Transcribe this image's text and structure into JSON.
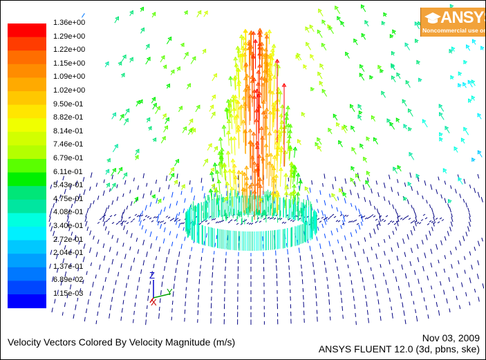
{
  "legend": {
    "labels": [
      "1.36e+00",
      "1.29e+00",
      "1.22e+00",
      "1.15e+00",
      "1.09e+00",
      "1.02e+00",
      "9.50e-01",
      "8.82e-01",
      "8.14e-01",
      "7.46e-01",
      "6.79e-01",
      "6.11e-01",
      "5.43e-01",
      "4.75e-01",
      "4.08e-01",
      "3.40e-01",
      "2.72e-01",
      "2.04e-01",
      "1.37e-01",
      "6.89e-02",
      "1.15e-03"
    ],
    "colors": [
      "#ff0000",
      "#ff3c00",
      "#ff6e00",
      "#ff8c00",
      "#ffaa00",
      "#ffc800",
      "#ffe600",
      "#f0ff00",
      "#d2ff00",
      "#b4ff00",
      "#5aff00",
      "#00f000",
      "#00e678",
      "#00e6a0",
      "#00ffe0",
      "#00f0ff",
      "#00c8ff",
      "#00a0ff",
      "#0078ff",
      "#0046ff",
      "#0000ff"
    ]
  },
  "logo": {
    "word": "ANSYS",
    "sub": "Noncommercial use only"
  },
  "axes": {
    "z": "Z",
    "y": "Y",
    "x": "X"
  },
  "caption": {
    "title": "Velocity Vectors Colored By Velocity Magnitude (m/s)",
    "date": "Nov 03, 2009",
    "solver": "ANSYS FLUENT 12.0 (3d, pbns, ske)"
  }
}
